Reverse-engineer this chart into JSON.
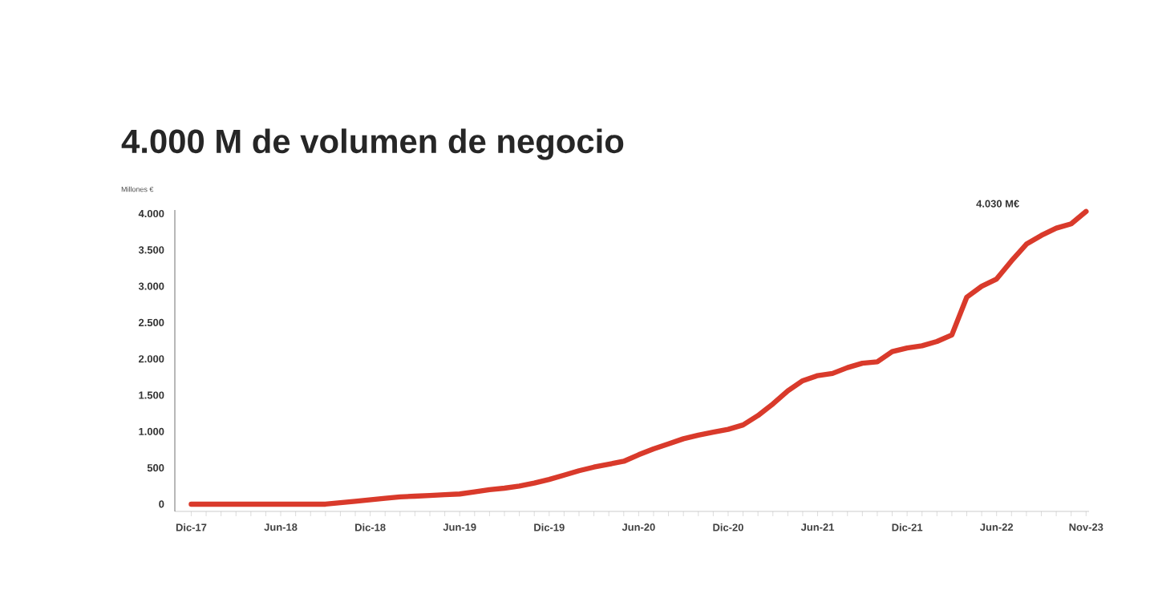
{
  "chart_data": {
    "type": "line",
    "title": "4.000 M de volumen de negocio",
    "ylabel": "Millones €",
    "categories": [
      "Dic-17",
      null,
      null,
      null,
      null,
      null,
      "Jun-18",
      null,
      null,
      null,
      null,
      null,
      "Dic-18",
      null,
      null,
      null,
      null,
      null,
      "Jun-19",
      null,
      null,
      null,
      null,
      null,
      "Dic-19",
      null,
      null,
      null,
      null,
      null,
      "Jun-20",
      null,
      null,
      null,
      null,
      null,
      "Dic-20",
      null,
      null,
      null,
      null,
      null,
      "Jun-21",
      null,
      null,
      null,
      null,
      null,
      "Dic-21",
      null,
      null,
      null,
      null,
      null,
      "Jun-22",
      null,
      null,
      null,
      null,
      null,
      "Nov-23"
    ],
    "series": [
      {
        "color": "#d93a2b",
        "values": [
          0,
          0,
          0,
          0,
          0,
          0,
          0,
          0,
          0,
          0,
          20,
          40,
          60,
          80,
          100,
          110,
          120,
          130,
          140,
          170,
          200,
          220,
          250,
          290,
          340,
          400,
          460,
          510,
          550,
          590,
          680,
          760,
          830,
          900,
          950,
          990,
          1030,
          1090,
          1220,
          1380,
          1560,
          1700,
          1770,
          1800,
          1880,
          1940,
          1960,
          2100,
          2150,
          2180,
          2240,
          2330,
          2850,
          3000,
          3100,
          3350,
          3580,
          3700,
          3800,
          3860,
          4030
        ]
      }
    ],
    "ylim": [
      -100,
      4050
    ],
    "yticks": [
      0,
      {
        "value": 500,
        "label": "500"
      },
      {
        "value": 1000,
        "label": "1.000"
      },
      {
        "value": 1500,
        "label": "1.500"
      },
      {
        "value": 2000,
        "label": "2.000"
      },
      {
        "value": 2500,
        "label": "2.500"
      },
      {
        "value": 3000,
        "label": "3.000"
      },
      {
        "value": 3500,
        "label": "3.500"
      },
      {
        "value": 4000,
        "label": "4.000"
      }
    ],
    "annotations": [
      "4.030 M€"
    ]
  }
}
